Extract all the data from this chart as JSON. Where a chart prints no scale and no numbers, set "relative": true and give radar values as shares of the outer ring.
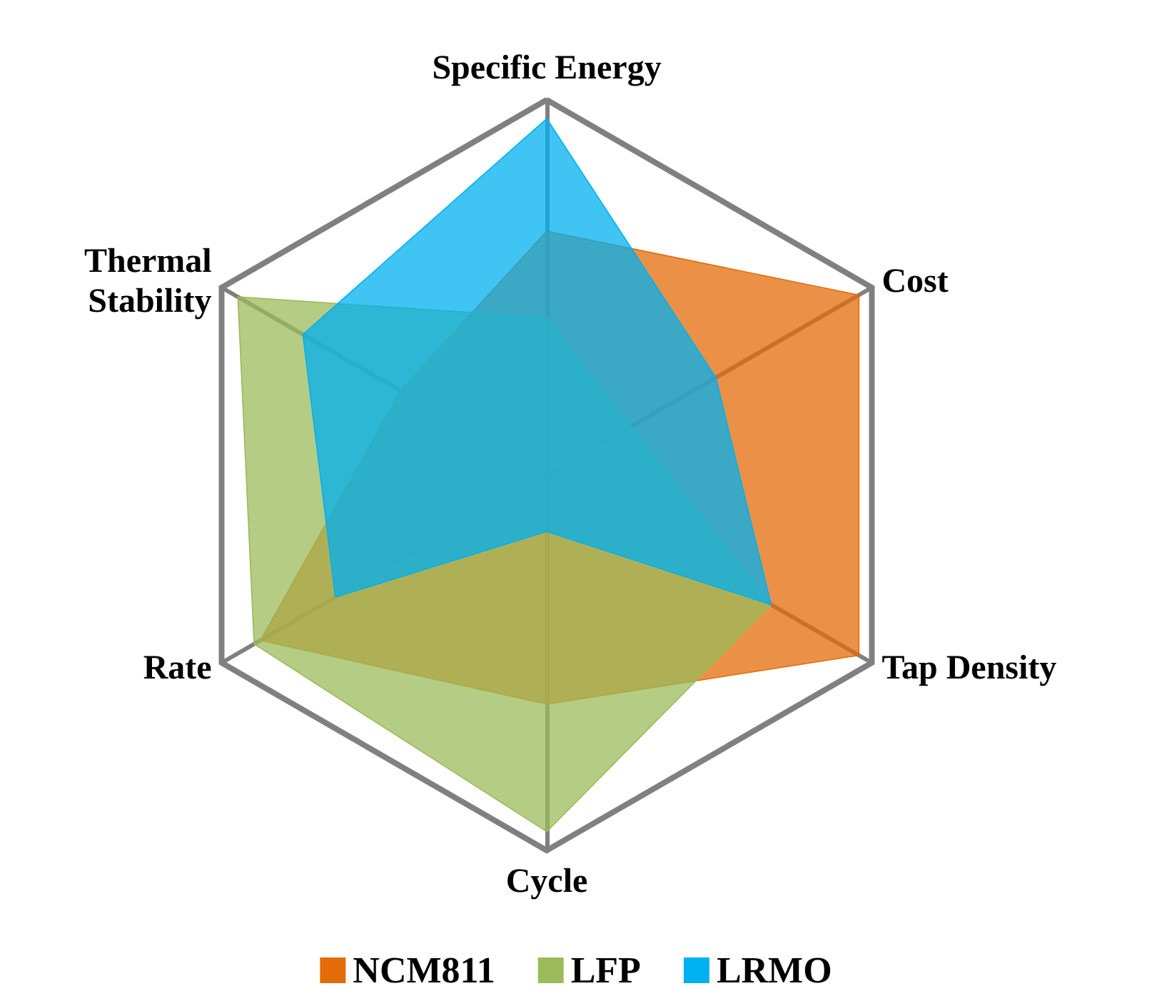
{
  "chart_data": {
    "type": "radar",
    "relative": true,
    "legend": "bottom",
    "categories": [
      "Specific Energy",
      "Cost",
      "Tap Density",
      "Cycle",
      "Rate",
      "Thermal\nStability"
    ],
    "series": [
      {
        "name": "NCM811",
        "color": "#e36c09",
        "values": [
          0.65,
          0.96,
          0.96,
          0.61,
          0.88,
          0.45
        ]
      },
      {
        "name": "LFP",
        "color": "#9bbb59",
        "values": [
          0.42,
          0.26,
          0.69,
          0.95,
          0.9,
          0.95
        ]
      },
      {
        "name": "LRMO",
        "color": "#00b0f0",
        "values": [
          0.95,
          0.52,
          0.69,
          0.15,
          0.65,
          0.75
        ]
      }
    ]
  }
}
